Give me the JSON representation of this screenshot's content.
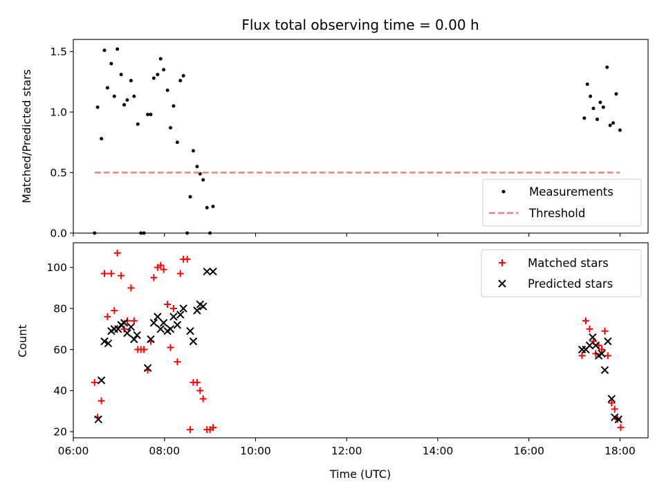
{
  "chart_data": {
    "title": "Flux total observing time = 0.00 h",
    "xlabel": "Time (UTC)",
    "xlim": [
      "06:00",
      "18:37"
    ],
    "x_ticks": [
      "06:00",
      "08:00",
      "10:00",
      "12:00",
      "14:00",
      "16:00",
      "18:00"
    ],
    "shared_x": true,
    "panels": [
      {
        "type": "scatter",
        "ylabel": "Matched/Predicted stars",
        "ylim": [
          0,
          1.6
        ],
        "y_ticks": [
          "0.0",
          "0.5",
          "1.0",
          "1.5"
        ],
        "legend_position": "lower-right",
        "series": [
          {
            "name": "Measurements",
            "marker": "dot",
            "color": "#000000",
            "points": [
              [
                "06:28",
                0.0
              ],
              [
                "06:32",
                1.04
              ],
              [
                "06:37",
                0.78
              ],
              [
                "06:41",
                1.51
              ],
              [
                "06:45",
                1.2
              ],
              [
                "06:50",
                1.4
              ],
              [
                "06:54",
                1.13
              ],
              [
                "06:58",
                1.52
              ],
              [
                "07:03",
                1.31
              ],
              [
                "07:07",
                1.06
              ],
              [
                "07:11",
                1.1
              ],
              [
                "07:16",
                1.26
              ],
              [
                "07:20",
                1.13
              ],
              [
                "07:25",
                0.9
              ],
              [
                "07:29",
                0.0
              ],
              [
                "07:33",
                0.0
              ],
              [
                "07:38",
                0.98
              ],
              [
                "07:42",
                0.98
              ],
              [
                "07:46",
                1.28
              ],
              [
                "07:51",
                1.31
              ],
              [
                "07:55",
                1.44
              ],
              [
                "07:59",
                1.35
              ],
              [
                "08:04",
                1.18
              ],
              [
                "08:08",
                0.87
              ],
              [
                "08:12",
                1.05
              ],
              [
                "08:17",
                0.75
              ],
              [
                "08:21",
                1.26
              ],
              [
                "08:25",
                1.3
              ],
              [
                "08:30",
                0.0
              ],
              [
                "08:34",
                0.3
              ],
              [
                "08:38",
                0.68
              ],
              [
                "08:43",
                0.55
              ],
              [
                "08:47",
                0.49
              ],
              [
                "08:51",
                0.44
              ],
              [
                "08:56",
                0.21
              ],
              [
                "09:00",
                0.0
              ],
              [
                "09:04",
                0.22
              ],
              [
                "17:13",
                0.95
              ],
              [
                "17:17",
                1.23
              ],
              [
                "17:21",
                1.13
              ],
              [
                "17:25",
                1.03
              ],
              [
                "17:30",
                0.94
              ],
              [
                "17:34",
                1.08
              ],
              [
                "17:38",
                1.04
              ],
              [
                "17:43",
                1.37
              ],
              [
                "17:47",
                0.89
              ],
              [
                "17:51",
                0.91
              ],
              [
                "17:55",
                1.15
              ],
              [
                "18:00",
                0.85
              ]
            ]
          },
          {
            "name": "Threshold",
            "type": "line",
            "style": "dashed",
            "color": "#f08080",
            "points": [
              [
                "06:28",
                0.5
              ],
              [
                "18:00",
                0.5
              ]
            ]
          }
        ]
      },
      {
        "type": "scatter",
        "ylabel": "Count",
        "ylim": [
          17,
          112
        ],
        "y_ticks": [
          "20",
          "40",
          "60",
          "80",
          "100"
        ],
        "legend_position": "upper-right",
        "series": [
          {
            "name": "Matched stars",
            "marker": "plus",
            "color": "#ff0000",
            "points": [
              [
                "06:28",
                44
              ],
              [
                "06:32",
                27
              ],
              [
                "06:37",
                35
              ],
              [
                "06:41",
                97
              ],
              [
                "06:45",
                76
              ],
              [
                "06:50",
                97
              ],
              [
                "06:54",
                79
              ],
              [
                "06:58",
                107
              ],
              [
                "07:03",
                96
              ],
              [
                "07:07",
                70
              ],
              [
                "07:11",
                74
              ],
              [
                "07:16",
                90
              ],
              [
                "07:20",
                74
              ],
              [
                "07:25",
                60
              ],
              [
                "07:29",
                60
              ],
              [
                "07:33",
                60
              ],
              [
                "07:38",
                50
              ],
              [
                "07:42",
                64
              ],
              [
                "07:46",
                95
              ],
              [
                "07:51",
                100
              ],
              [
                "07:55",
                101
              ],
              [
                "07:59",
                99
              ],
              [
                "08:04",
                82
              ],
              [
                "08:08",
                61
              ],
              [
                "08:12",
                80
              ],
              [
                "08:17",
                54
              ],
              [
                "08:21",
                97
              ],
              [
                "08:25",
                104
              ],
              [
                "08:30",
                104
              ],
              [
                "08:34",
                21
              ],
              [
                "08:38",
                44
              ],
              [
                "08:43",
                44
              ],
              [
                "08:47",
                40
              ],
              [
                "08:51",
                36
              ],
              [
                "08:56",
                21
              ],
              [
                "09:00",
                21
              ],
              [
                "09:04",
                22
              ],
              [
                "17:10",
                57
              ],
              [
                "17:15",
                74
              ],
              [
                "17:20",
                70
              ],
              [
                "17:25",
                64
              ],
              [
                "17:28",
                58
              ],
              [
                "17:32",
                62
              ],
              [
                "17:36",
                60
              ],
              [
                "17:40",
                69
              ],
              [
                "17:44",
                57
              ],
              [
                "17:49",
                34
              ],
              [
                "17:53",
                31
              ],
              [
                "17:57",
                26
              ],
              [
                "18:01",
                22
              ]
            ]
          },
          {
            "name": "Predicted stars",
            "marker": "x",
            "color": "#000000",
            "points": [
              [
                "06:33",
                26
              ],
              [
                "06:37",
                45
              ],
              [
                "06:41",
                64
              ],
              [
                "06:46",
                63
              ],
              [
                "06:50",
                69
              ],
              [
                "06:54",
                70
              ],
              [
                "06:59",
                70
              ],
              [
                "07:03",
                72
              ],
              [
                "07:07",
                73
              ],
              [
                "07:11",
                68
              ],
              [
                "07:16",
                71
              ],
              [
                "07:20",
                65
              ],
              [
                "07:24",
                67
              ],
              [
                "07:38",
                51
              ],
              [
                "07:42",
                65
              ],
              [
                "07:46",
                73
              ],
              [
                "07:51",
                76
              ],
              [
                "07:55",
                70
              ],
              [
                "07:59",
                73
              ],
              [
                "08:04",
                69
              ],
              [
                "08:08",
                70
              ],
              [
                "08:12",
                76
              ],
              [
                "08:17",
                72
              ],
              [
                "08:21",
                77
              ],
              [
                "08:25",
                80
              ],
              [
                "08:34",
                69
              ],
              [
                "08:38",
                64
              ],
              [
                "08:43",
                79
              ],
              [
                "08:47",
                82
              ],
              [
                "08:51",
                81
              ],
              [
                "08:56",
                98
              ],
              [
                "09:04",
                98
              ],
              [
                "17:10",
                60
              ],
              [
                "17:15",
                60
              ],
              [
                "17:20",
                62
              ],
              [
                "17:24",
                66
              ],
              [
                "17:28",
                62
              ],
              [
                "17:32",
                57
              ],
              [
                "17:36",
                58
              ],
              [
                "17:40",
                50
              ],
              [
                "17:44",
                64
              ],
              [
                "17:49",
                36
              ],
              [
                "17:53",
                27
              ],
              [
                "17:58",
                26
              ]
            ]
          }
        ]
      }
    ]
  }
}
